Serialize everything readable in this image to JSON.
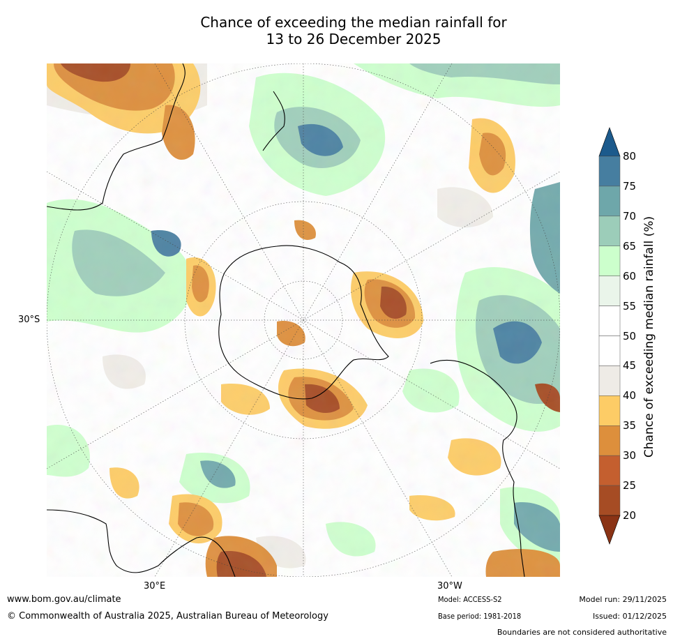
{
  "title": {
    "line1": "Chance of exceeding the median rainfall for",
    "line2": "13 to 26 December 2025"
  },
  "map": {
    "projection_label": "South polar stereographic",
    "lat_label": "30°S",
    "lon_labels": [
      "30°E",
      "30°W"
    ],
    "features": [
      "Antarctica",
      "South America",
      "Africa",
      "Australia",
      "New Zealand"
    ]
  },
  "colorbar": {
    "label": "Chance of exceeding median rainfall (%)",
    "ticks": [
      "80",
      "75",
      "70",
      "65",
      "60",
      "55",
      "50",
      "45",
      "40",
      "35",
      "30",
      "25",
      "20"
    ],
    "colors": [
      "#1c5a8c",
      "#467ea0",
      "#6ea7aa",
      "#9ccdb9",
      "#ccffcc",
      "#eaf5ea",
      "#ffffff",
      "#ffffff",
      "#eeebe6",
      "#fdcc66",
      "#dd8f3c",
      "#c45f2f",
      "#a64c24",
      "#8a3315"
    ],
    "top_color": "#1c5a8c",
    "bottom_color": "#8a3315"
  },
  "footer": {
    "website": "www.bom.gov.au/climate",
    "copyright": "© Commonwealth of Australia 2025, Australian Bureau of Meteorology",
    "model": "Model: ACCESS-S2",
    "base_period": "Base period: 1981-2018",
    "model_run": "Model run: 29/11/2025",
    "issued": "Issued: 01/12/2025",
    "disclaimer": "Boundaries are not considered authoritative"
  }
}
